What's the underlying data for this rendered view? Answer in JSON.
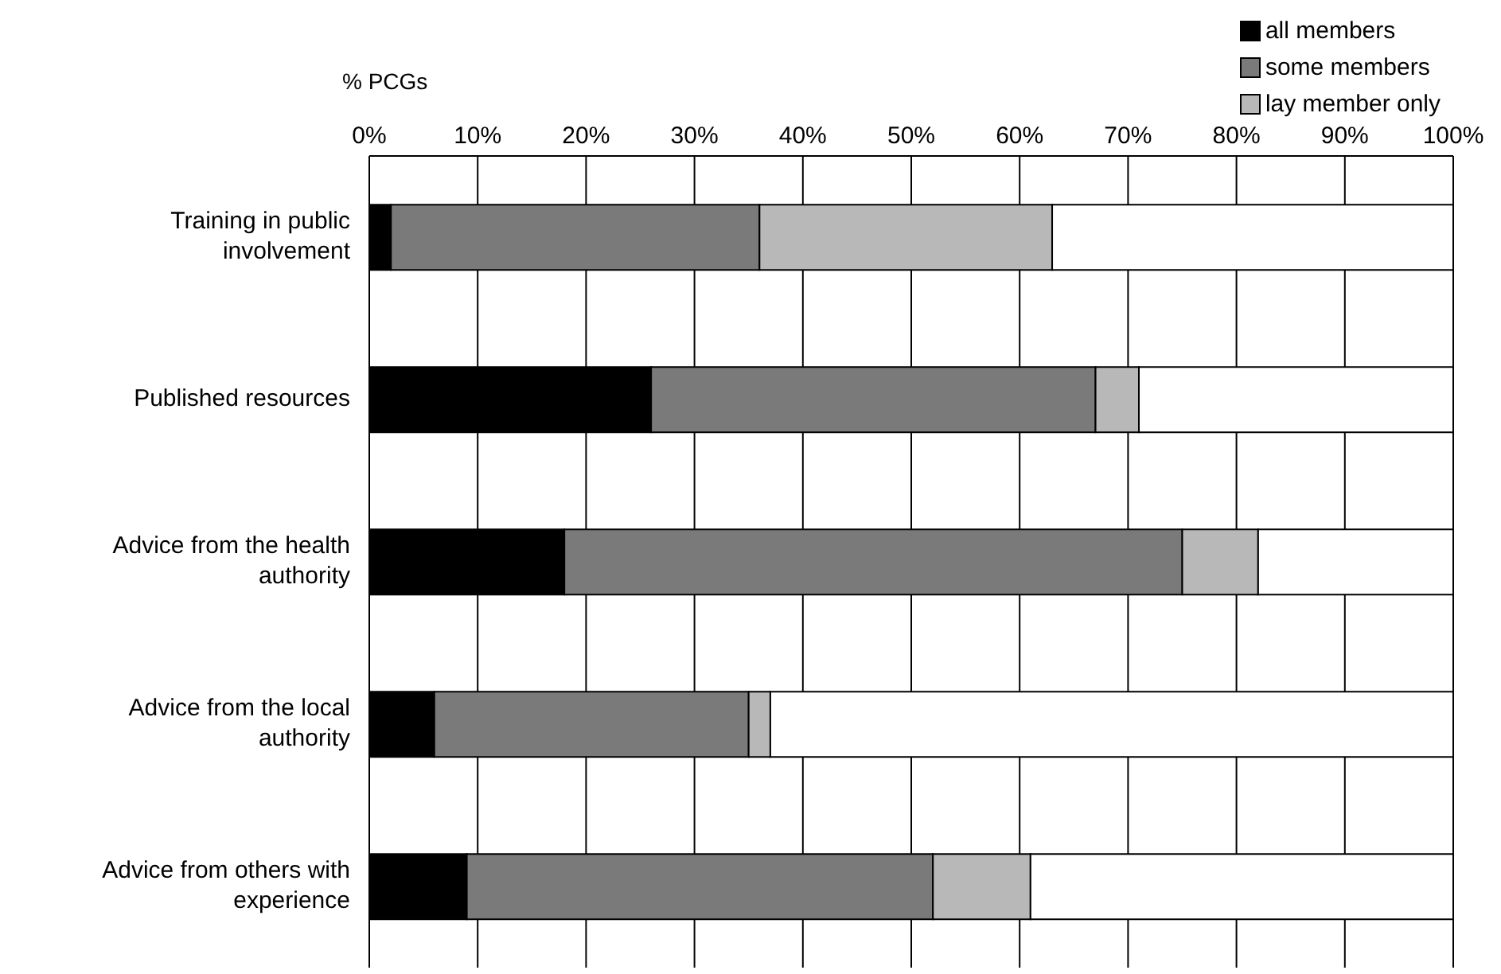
{
  "chart_data": {
    "type": "bar",
    "orientation": "horizontal",
    "stacked": true,
    "xlabel": "% PCGs",
    "categories": [
      "Training in public involvement",
      "Published resources",
      "Advice from the health authority",
      "Advice from the local authority",
      "Advice from others with experience"
    ],
    "series": [
      {
        "name": "all members",
        "color": "#000000",
        "values": [
          2,
          26,
          18,
          6,
          9
        ]
      },
      {
        "name": "some members",
        "color": "#7a7a7a",
        "values": [
          34,
          41,
          57,
          29,
          43
        ]
      },
      {
        "name": "lay member only",
        "color": "#b8b8b8",
        "values": [
          27,
          4,
          7,
          2,
          9
        ]
      },
      {
        "color": "#ffffff",
        "values": [
          37,
          29,
          18,
          63,
          39
        ]
      }
    ],
    "xlim": [
      0,
      100
    ],
    "xticks": [
      {
        "value": 0,
        "label": "0%"
      },
      {
        "value": 10,
        "label": "10%"
      },
      {
        "value": 20,
        "label": "20%"
      },
      {
        "value": 30,
        "label": "30%"
      },
      {
        "value": 40,
        "label": "40%"
      },
      {
        "value": 50,
        "label": "50%"
      },
      {
        "value": 60,
        "label": "60%"
      },
      {
        "value": 70,
        "label": "70%"
      },
      {
        "value": 80,
        "label": "80%"
      },
      {
        "value": 90,
        "label": "90%"
      },
      {
        "value": 100,
        "label": "100%"
      }
    ],
    "grid": "x",
    "legend": "top right"
  }
}
